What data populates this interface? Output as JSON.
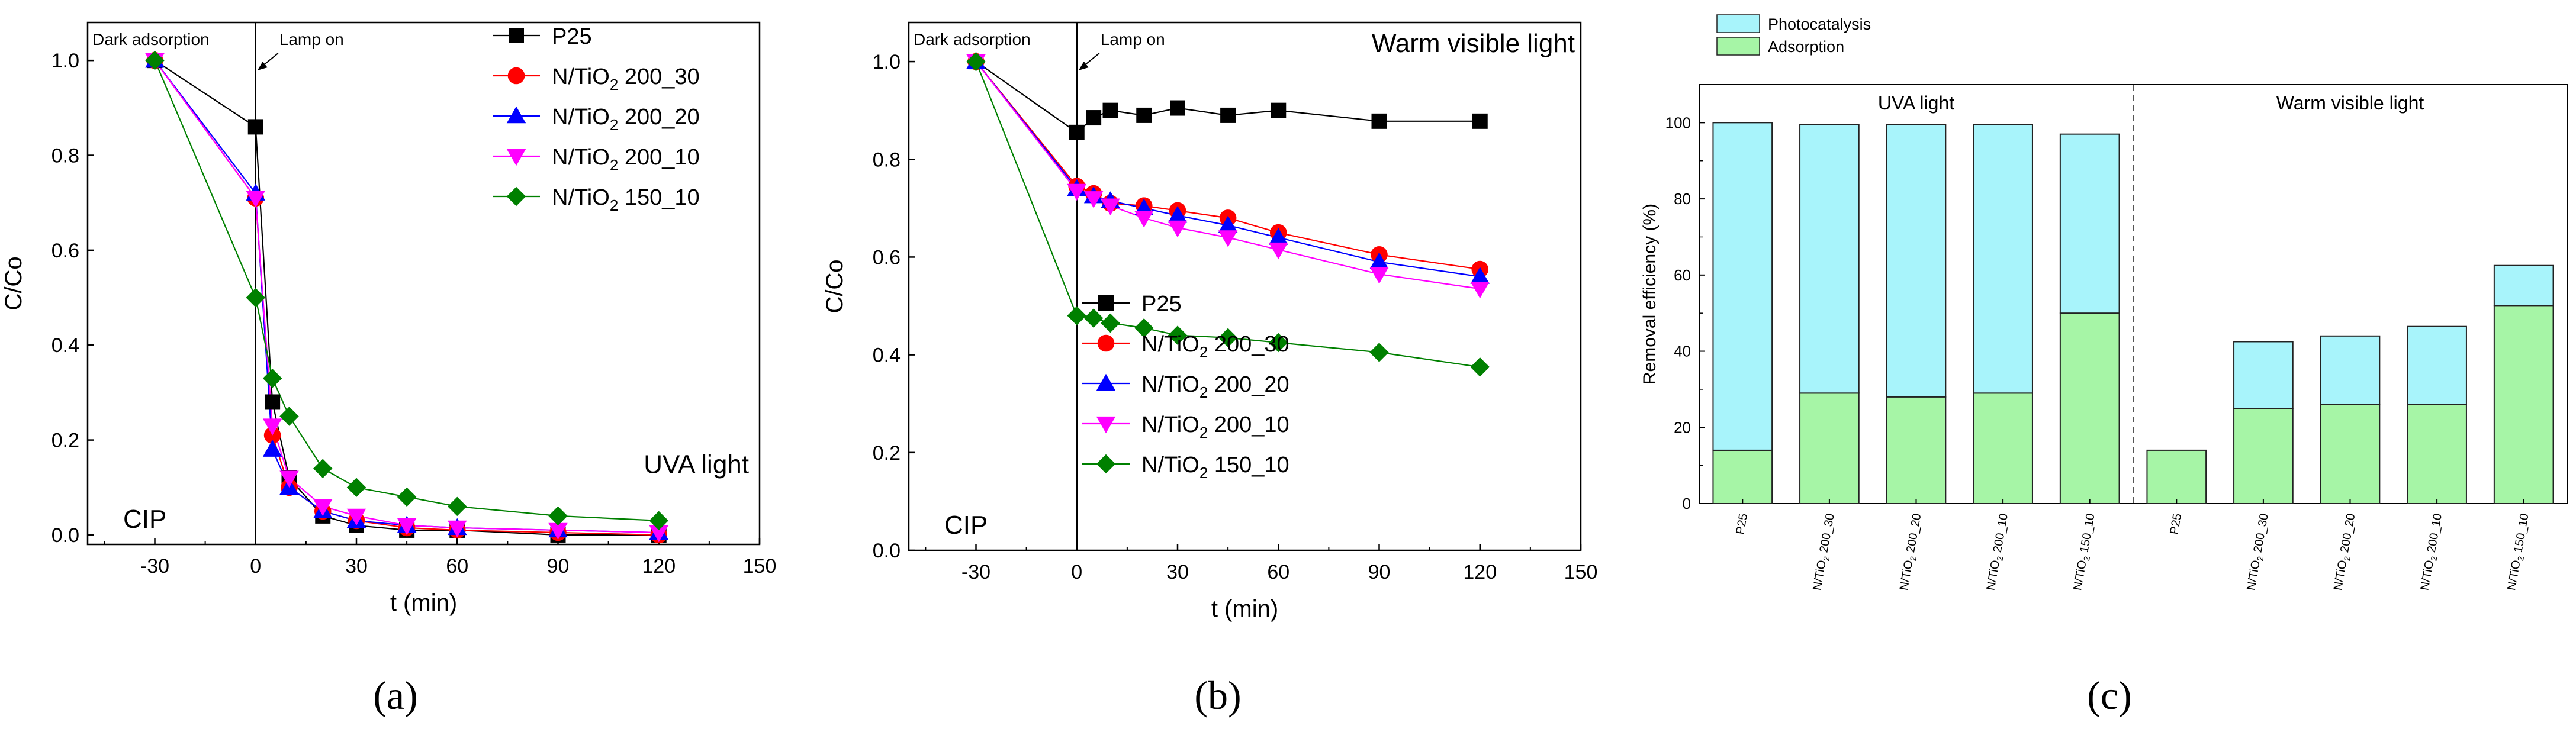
{
  "figure_labels": {
    "a": "(a)",
    "b": "(b)",
    "c": "(c)"
  },
  "chart_data": [
    {
      "id": "a",
      "type": "line",
      "xlabel": "t (min)",
      "ylabel": "C/Co",
      "xlim": [
        -50,
        150
      ],
      "ylim": [
        -0.02,
        1.08
      ],
      "xticks": [
        -30,
        0,
        30,
        60,
        90,
        120,
        150
      ],
      "yticks": [
        0.0,
        0.2,
        0.4,
        0.6,
        0.8,
        1.0
      ],
      "x": [
        -30,
        0,
        5,
        10,
        20,
        30,
        45,
        60,
        90,
        120
      ],
      "series": [
        {
          "name": "P25",
          "color": "#000000",
          "marker": "square",
          "values": [
            1.0,
            0.86,
            0.28,
            0.12,
            0.04,
            0.02,
            0.01,
            0.01,
            0.0,
            0.0
          ]
        },
        {
          "name": "N/TiO2 200_30",
          "color": "#ff0000",
          "marker": "circle",
          "values": [
            1.0,
            0.71,
            0.21,
            0.1,
            0.05,
            0.03,
            0.015,
            0.01,
            0.005,
            0.0
          ]
        },
        {
          "name": "N/TiO2 200_20",
          "color": "#0000ff",
          "marker": "triangle-up",
          "values": [
            1.0,
            0.72,
            0.18,
            0.1,
            0.05,
            0.03,
            0.02,
            0.015,
            0.01,
            0.005
          ]
        },
        {
          "name": "N/TiO2 200_10",
          "color": "#ff00ff",
          "marker": "triangle-down",
          "values": [
            1.0,
            0.71,
            0.23,
            0.12,
            0.06,
            0.04,
            0.02,
            0.015,
            0.01,
            0.005
          ]
        },
        {
          "name": "N/TiO2 150_10",
          "color": "#008000",
          "marker": "diamond",
          "values": [
            1.0,
            0.5,
            0.33,
            0.25,
            0.14,
            0.1,
            0.08,
            0.06,
            0.04,
            0.03
          ]
        }
      ],
      "annotations": {
        "dark": "Dark adsorption",
        "lamp": "Lamp on",
        "compound": "CIP",
        "light": "UVA light"
      },
      "legend_position": "top-right"
    },
    {
      "id": "b",
      "type": "line",
      "xlabel": "t (min)",
      "ylabel": "C/Co",
      "xlim": [
        -50,
        150
      ],
      "ylim": [
        0.0,
        1.08
      ],
      "xticks": [
        -30,
        0,
        30,
        60,
        90,
        120,
        150
      ],
      "yticks": [
        0.0,
        0.2,
        0.4,
        0.6,
        0.8,
        1.0
      ],
      "x": [
        -30,
        0,
        5,
        10,
        20,
        30,
        45,
        60,
        90,
        120
      ],
      "series": [
        {
          "name": "P25",
          "color": "#000000",
          "marker": "square",
          "values": [
            1.0,
            0.855,
            0.885,
            0.9,
            0.89,
            0.905,
            0.89,
            0.9,
            0.878,
            0.878
          ]
        },
        {
          "name": "N/TiO2 200_30",
          "color": "#ff0000",
          "marker": "circle",
          "values": [
            1.0,
            0.745,
            0.73,
            0.71,
            0.705,
            0.695,
            0.68,
            0.65,
            0.605,
            0.575
          ]
        },
        {
          "name": "N/TiO2 200_20",
          "color": "#0000ff",
          "marker": "triangle-up",
          "values": [
            1.0,
            0.74,
            0.725,
            0.715,
            0.7,
            0.685,
            0.665,
            0.64,
            0.59,
            0.56
          ]
        },
        {
          "name": "N/TiO2 200_10",
          "color": "#ff00ff",
          "marker": "triangle-down",
          "values": [
            1.0,
            0.735,
            0.72,
            0.705,
            0.68,
            0.66,
            0.64,
            0.615,
            0.565,
            0.535
          ]
        },
        {
          "name": "N/TiO2 150_10",
          "color": "#008000",
          "marker": "diamond",
          "values": [
            1.0,
            0.48,
            0.475,
            0.465,
            0.455,
            0.44,
            0.435,
            0.425,
            0.405,
            0.375
          ]
        }
      ],
      "annotations": {
        "dark": "Dark adsorption",
        "lamp": "Lamp on",
        "compound": "CIP",
        "light": "Warm visible light"
      },
      "legend_position": "lower-center"
    },
    {
      "id": "c",
      "type": "bar",
      "stacked": true,
      "ylabel": "Removal efficiency (%)",
      "ylim": [
        0,
        110
      ],
      "yticks": [
        0,
        20,
        40,
        60,
        80,
        100
      ],
      "categories": [
        "P25",
        "N/TiO2 200_30",
        "N/TiO2 200_20",
        "N/TiO2 200_10",
        "N/TiO2 150_10",
        "P25",
        "N/TiO2 200_30",
        "N/TiO2 200_20",
        "N/TiO2 200_10",
        "N/TiO2 150_10"
      ],
      "series": [
        {
          "name": "Adsorption",
          "color": "#a6f5a6",
          "values": [
            14,
            29,
            28,
            29,
            50,
            14,
            25,
            26,
            26,
            52
          ]
        },
        {
          "name": "Photocatalysis",
          "color": "#a8f4fb",
          "values": [
            86,
            70.5,
            71.5,
            70.5,
            47,
            0,
            17.5,
            18,
            20.5,
            10.5
          ]
        }
      ],
      "group_labels": [
        "UVA light",
        "Warm visible light"
      ],
      "legend_position": "top-left"
    }
  ]
}
